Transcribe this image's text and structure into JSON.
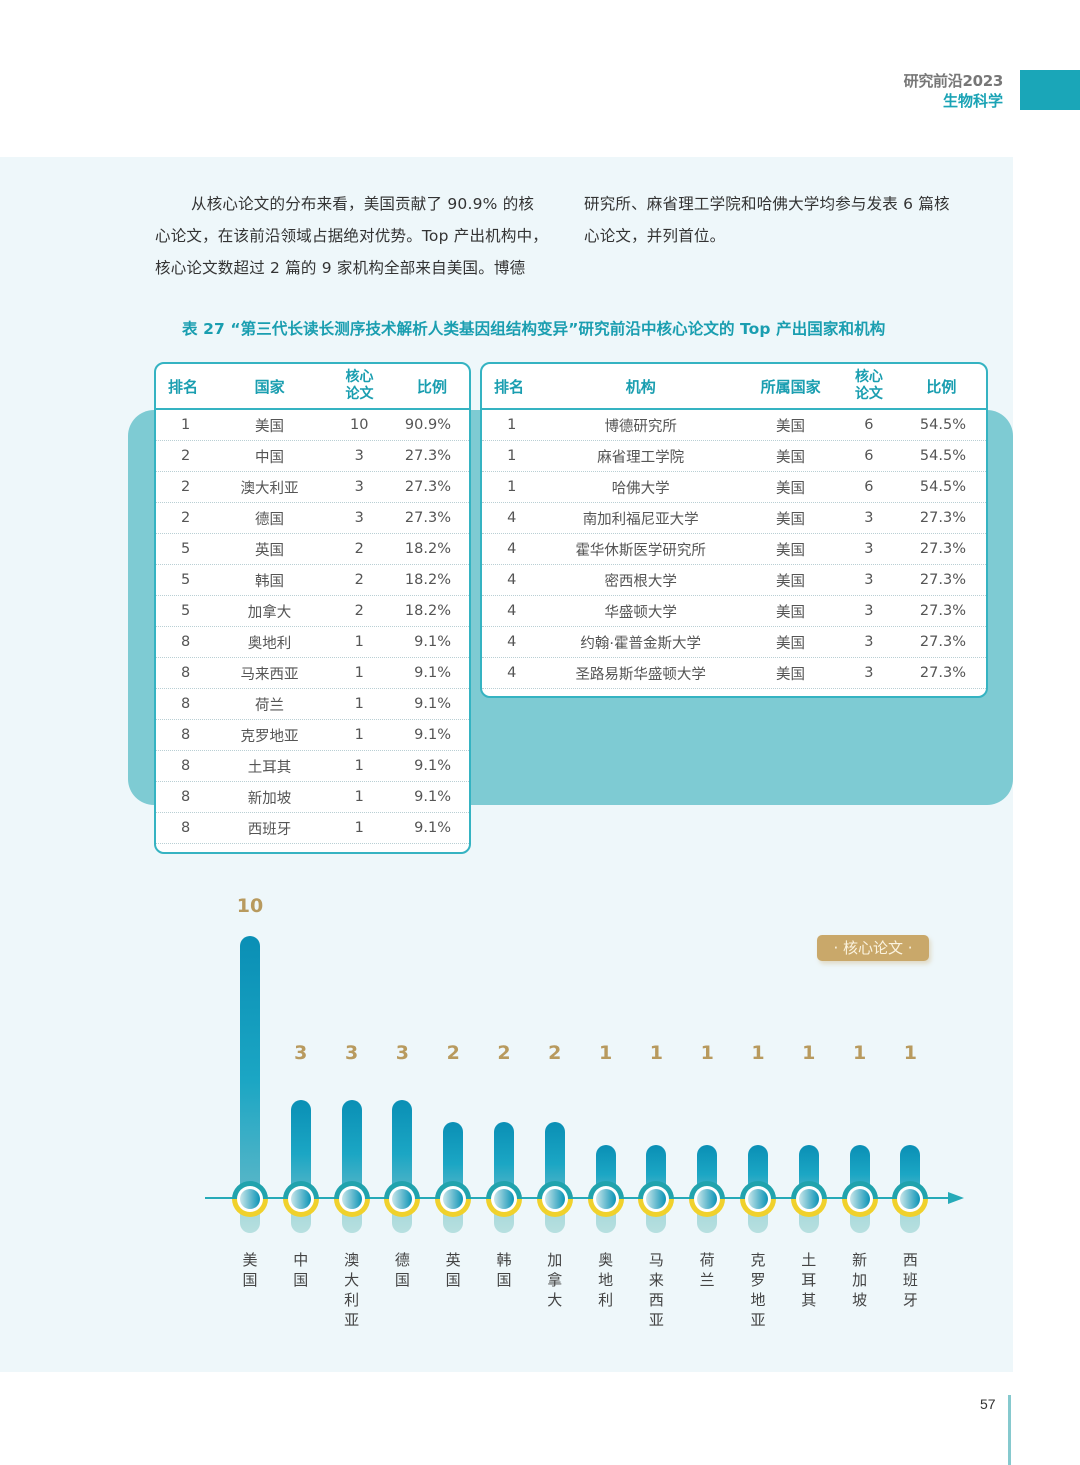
{
  "header": {
    "line1": "研究前沿2023",
    "line2": "生物科学",
    "accent_color": "#1aa6b8"
  },
  "body_text": {
    "left_lines": [
      "从核心论文的分布来看，美国贡献了 90.9% 的核",
      "心论文，在该前沿领域占据绝对优势。Top 产出机构中，",
      "核心论文数超过 2 篇的 9 家机构全部来自美国。博德"
    ],
    "right_lines": [
      "研究所、麻省理工学院和哈佛大学均参与发表 6 篇核",
      "心论文，并列首位。"
    ]
  },
  "caption": "表 27 “第三代长读长测序技术解析人类基因组结构变异”研究前沿中核心论文的 Top 产出国家和机构",
  "country_table": {
    "headers": {
      "rank": "排名",
      "country": "国家",
      "count_line1": "核心",
      "count_line2": "论文",
      "pct": "比例"
    },
    "rows": [
      {
        "rank": "1",
        "country": "美国",
        "count": "10",
        "pct": "90.9%"
      },
      {
        "rank": "2",
        "country": "中国",
        "count": "3",
        "pct": "27.3%"
      },
      {
        "rank": "2",
        "country": "澳大利亚",
        "count": "3",
        "pct": "27.3%"
      },
      {
        "rank": "2",
        "country": "德国",
        "count": "3",
        "pct": "27.3%"
      },
      {
        "rank": "5",
        "country": "英国",
        "count": "2",
        "pct": "18.2%"
      },
      {
        "rank": "5",
        "country": "韩国",
        "count": "2",
        "pct": "18.2%"
      },
      {
        "rank": "5",
        "country": "加拿大",
        "count": "2",
        "pct": "18.2%"
      },
      {
        "rank": "8",
        "country": "奥地利",
        "count": "1",
        "pct": "9.1%"
      },
      {
        "rank": "8",
        "country": "马来西亚",
        "count": "1",
        "pct": "9.1%"
      },
      {
        "rank": "8",
        "country": "荷兰",
        "count": "1",
        "pct": "9.1%"
      },
      {
        "rank": "8",
        "country": "克罗地亚",
        "count": "1",
        "pct": "9.1%"
      },
      {
        "rank": "8",
        "country": "土耳其",
        "count": "1",
        "pct": "9.1%"
      },
      {
        "rank": "8",
        "country": "新加坡",
        "count": "1",
        "pct": "9.1%"
      },
      {
        "rank": "8",
        "country": "西班牙",
        "count": "1",
        "pct": "9.1%"
      }
    ]
  },
  "institution_table": {
    "headers": {
      "rank": "排名",
      "institution": "机构",
      "country": "所属国家",
      "count_line1": "核心",
      "count_line2": "论文",
      "pct": "比例"
    },
    "rows": [
      {
        "rank": "1",
        "institution": "博德研究所",
        "country": "美国",
        "count": "6",
        "pct": "54.5%"
      },
      {
        "rank": "1",
        "institution": "麻省理工学院",
        "country": "美国",
        "count": "6",
        "pct": "54.5%"
      },
      {
        "rank": "1",
        "institution": "哈佛大学",
        "country": "美国",
        "count": "6",
        "pct": "54.5%"
      },
      {
        "rank": "4",
        "institution": "南加利福尼亚大学",
        "country": "美国",
        "count": "3",
        "pct": "27.3%"
      },
      {
        "rank": "4",
        "institution": "霍华休斯医学研究所",
        "country": "美国",
        "count": "3",
        "pct": "27.3%"
      },
      {
        "rank": "4",
        "institution": "密西根大学",
        "country": "美国",
        "count": "3",
        "pct": "27.3%"
      },
      {
        "rank": "4",
        "institution": "华盛顿大学",
        "country": "美国",
        "count": "3",
        "pct": "27.3%"
      },
      {
        "rank": "4",
        "institution": "约翰·霍普金斯大学",
        "country": "美国",
        "count": "3",
        "pct": "27.3%"
      },
      {
        "rank": "4",
        "institution": "圣路易斯华盛顿大学",
        "country": "美国",
        "count": "3",
        "pct": "27.3%"
      }
    ]
  },
  "chart": {
    "legend": "· 核心论文 ·",
    "bars": [
      {
        "label": "美国",
        "value": "10"
      },
      {
        "label": "中国",
        "value": "3"
      },
      {
        "label": "澳大利亚",
        "value": "3"
      },
      {
        "label": "德国",
        "value": "3"
      },
      {
        "label": "英国",
        "value": "2"
      },
      {
        "label": "韩国",
        "value": "2"
      },
      {
        "label": "加拿大",
        "value": "2"
      },
      {
        "label": "奥地利",
        "value": "1"
      },
      {
        "label": "马来西亚",
        "value": "1"
      },
      {
        "label": "荷兰",
        "value": "1"
      },
      {
        "label": "克罗地亚",
        "value": "1"
      },
      {
        "label": "土耳其",
        "value": "1"
      },
      {
        "label": "新加坡",
        "value": "1"
      },
      {
        "label": "西班牙",
        "value": "1"
      }
    ],
    "colors": {
      "bar": "#0a8fb5",
      "value_text": "#b89a5e",
      "legend_bg": "#c9a86a",
      "ring_top": "#21a3ad",
      "ring_bottom": "#f0d12c"
    }
  },
  "chart_data": {
    "type": "bar",
    "title": "核心论文",
    "categories": [
      "美国",
      "中国",
      "澳大利亚",
      "德国",
      "英国",
      "韩国",
      "加拿大",
      "奥地利",
      "马来西亚",
      "荷兰",
      "克罗地亚",
      "土耳其",
      "新加坡",
      "西班牙"
    ],
    "values": [
      10,
      3,
      3,
      3,
      2,
      2,
      2,
      1,
      1,
      1,
      1,
      1,
      1,
      1
    ],
    "xlabel": "",
    "ylabel": "",
    "legend": [
      "核心论文"
    ],
    "legend_position": "top-right",
    "grid": false
  },
  "footer": {
    "page_number": "57"
  }
}
